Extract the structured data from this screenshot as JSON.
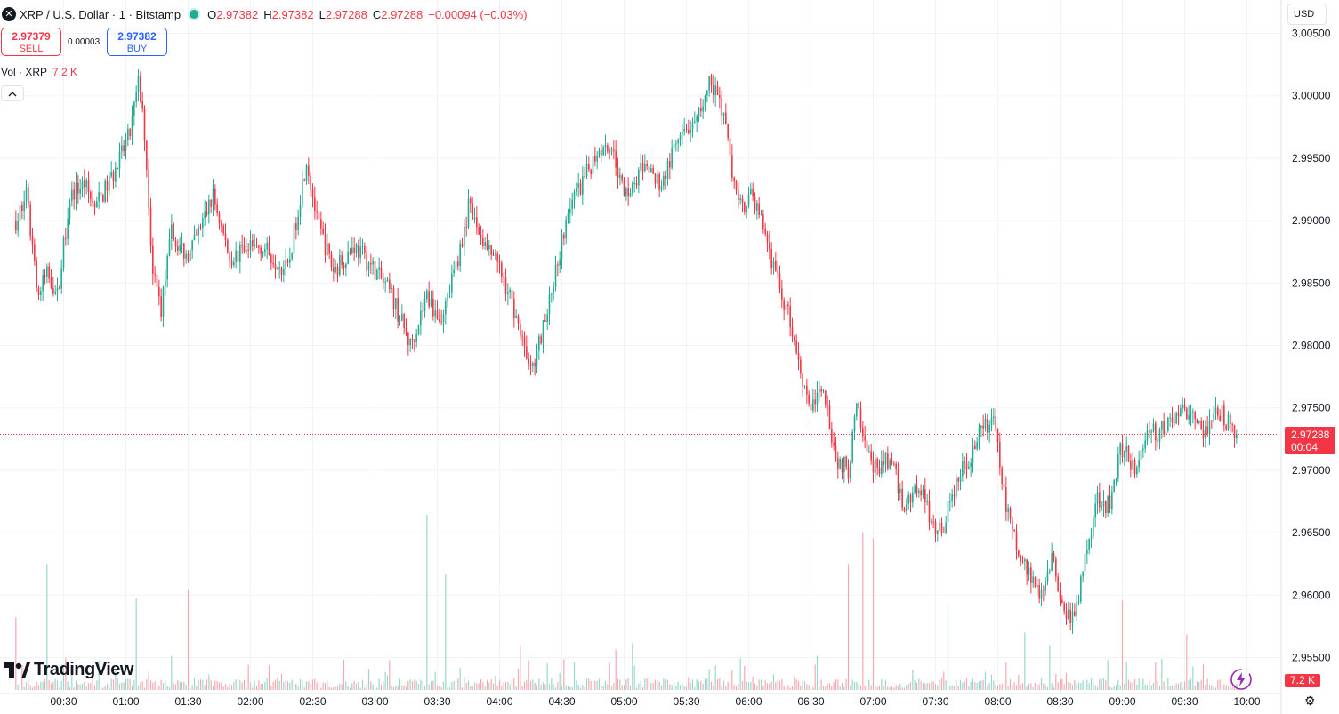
{
  "header": {
    "symbol_icon": "x-logo-icon",
    "title": "XRP / U.S. Dollar · 1 · Bitstamp",
    "ohlc": {
      "o_label": "O",
      "o": "2.97382",
      "h_label": "H",
      "h": "2.97382",
      "l_label": "L",
      "l": "2.97288",
      "c_label": "C",
      "c": "2.97288",
      "change": "−0.00094 (−0.03%)"
    }
  },
  "trade": {
    "sell_price": "2.97379",
    "sell_label": "SELL",
    "spread": "0.00003",
    "buy_price": "2.97382",
    "buy_label": "BUY"
  },
  "volume_legend": {
    "label": "Vol · XRP",
    "value": "7.2 K"
  },
  "controls": {
    "collapse_icon": "chevron-up-icon",
    "currency": "USD"
  },
  "price_tag": {
    "price": "2.97288",
    "countdown": "00:04"
  },
  "volume_tag": "7.2 K",
  "logo_text": "TradingView",
  "colors": {
    "up": "#22ab94",
    "down": "#f23645",
    "grid": "#f0f3fa",
    "text": "#131722"
  },
  "chart_data": {
    "type": "candlestick",
    "interval": "1 minute",
    "ylim": [
      2.9525,
      3.0055
    ],
    "y_ticks": [
      "3.00500",
      "3.00000",
      "2.99500",
      "2.99000",
      "2.98500",
      "2.98000",
      "2.97500",
      "2.97000",
      "2.96500",
      "2.96000",
      "2.95500"
    ],
    "x_ticks": [
      "00:30",
      "01:00",
      "01:30",
      "02:00",
      "02:30",
      "03:00",
      "03:30",
      "04:00",
      "04:30",
      "05:00",
      "05:30",
      "06:00",
      "06:30",
      "07:00",
      "07:30",
      "08:00",
      "08:30",
      "09:00",
      "09:30",
      "10:00"
    ],
    "x_start": "00:07",
    "x_end": "10:00",
    "last_price": 2.97288,
    "close_anchors": [
      {
        "t": "00:07",
        "p": 2.99
      },
      {
        "t": "00:12",
        "p": 2.992
      },
      {
        "t": "00:18",
        "p": 2.984
      },
      {
        "t": "00:22",
        "p": 2.986
      },
      {
        "t": "00:27",
        "p": 2.984
      },
      {
        "t": "00:33",
        "p": 2.992
      },
      {
        "t": "00:40",
        "p": 2.993
      },
      {
        "t": "00:45",
        "p": 2.991
      },
      {
        "t": "00:55",
        "p": 2.994
      },
      {
        "t": "01:02",
        "p": 2.997
      },
      {
        "t": "01:06",
        "p": 3.001
      },
      {
        "t": "01:09",
        "p": 2.997
      },
      {
        "t": "01:13",
        "p": 2.986
      },
      {
        "t": "01:17",
        "p": 2.983
      },
      {
        "t": "01:22",
        "p": 2.989
      },
      {
        "t": "01:30",
        "p": 2.987
      },
      {
        "t": "01:42",
        "p": 2.992
      },
      {
        "t": "01:50",
        "p": 2.987
      },
      {
        "t": "02:05",
        "p": 2.988
      },
      {
        "t": "02:18",
        "p": 2.986
      },
      {
        "t": "02:27",
        "p": 2.995
      },
      {
        "t": "02:32",
        "p": 2.99
      },
      {
        "t": "02:40",
        "p": 2.986
      },
      {
        "t": "02:50",
        "p": 2.988
      },
      {
        "t": "03:00",
        "p": 2.986
      },
      {
        "t": "03:08",
        "p": 2.984
      },
      {
        "t": "03:17",
        "p": 2.98
      },
      {
        "t": "03:25",
        "p": 2.984
      },
      {
        "t": "03:32",
        "p": 2.982
      },
      {
        "t": "03:40",
        "p": 2.987
      },
      {
        "t": "03:45",
        "p": 2.991
      },
      {
        "t": "03:53",
        "p": 2.988
      },
      {
        "t": "04:00",
        "p": 2.986
      },
      {
        "t": "04:05",
        "p": 2.984
      },
      {
        "t": "04:12",
        "p": 2.98
      },
      {
        "t": "04:16",
        "p": 2.978
      },
      {
        "t": "04:22",
        "p": 2.982
      },
      {
        "t": "04:27",
        "p": 2.986
      },
      {
        "t": "04:33",
        "p": 2.991
      },
      {
        "t": "04:40",
        "p": 2.993
      },
      {
        "t": "04:48",
        "p": 2.996
      },
      {
        "t": "04:54",
        "p": 2.996
      },
      {
        "t": "05:00",
        "p": 2.992
      },
      {
        "t": "05:08",
        "p": 2.994
      },
      {
        "t": "05:18",
        "p": 2.993
      },
      {
        "t": "05:25",
        "p": 2.996
      },
      {
        "t": "05:35",
        "p": 2.998
      },
      {
        "t": "05:41",
        "p": 3.001
      },
      {
        "t": "05:46",
        "p": 3.0
      },
      {
        "t": "05:50",
        "p": 2.996
      },
      {
        "t": "05:55",
        "p": 2.991
      },
      {
        "t": "06:02",
        "p": 2.992
      },
      {
        "t": "06:08",
        "p": 2.989
      },
      {
        "t": "06:14",
        "p": 2.985
      },
      {
        "t": "06:20",
        "p": 2.982
      },
      {
        "t": "06:25",
        "p": 2.978
      },
      {
        "t": "06:30",
        "p": 2.975
      },
      {
        "t": "06:36",
        "p": 2.977
      },
      {
        "t": "06:42",
        "p": 2.971
      },
      {
        "t": "06:48",
        "p": 2.97
      },
      {
        "t": "06:52",
        "p": 2.975
      },
      {
        "t": "06:57",
        "p": 2.971
      },
      {
        "t": "07:02",
        "p": 2.97
      },
      {
        "t": "07:08",
        "p": 2.971
      },
      {
        "t": "07:15",
        "p": 2.967
      },
      {
        "t": "07:22",
        "p": 2.969
      },
      {
        "t": "07:28",
        "p": 2.966
      },
      {
        "t": "07:33",
        "p": 2.965
      },
      {
        "t": "07:40",
        "p": 2.969
      },
      {
        "t": "07:46",
        "p": 2.971
      },
      {
        "t": "07:52",
        "p": 2.973
      },
      {
        "t": "07:58",
        "p": 2.974
      },
      {
        "t": "08:03",
        "p": 2.968
      },
      {
        "t": "08:10",
        "p": 2.963
      },
      {
        "t": "08:15",
        "p": 2.962
      },
      {
        "t": "08:20",
        "p": 2.96
      },
      {
        "t": "08:26",
        "p": 2.963
      },
      {
        "t": "08:32",
        "p": 2.959
      },
      {
        "t": "08:37",
        "p": 2.958
      },
      {
        "t": "08:42",
        "p": 2.963
      },
      {
        "t": "08:48",
        "p": 2.968
      },
      {
        "t": "08:54",
        "p": 2.967
      },
      {
        "t": "08:59",
        "p": 2.972
      },
      {
        "t": "09:06",
        "p": 2.97
      },
      {
        "t": "09:12",
        "p": 2.973
      },
      {
        "t": "09:18",
        "p": 2.973
      },
      {
        "t": "09:24",
        "p": 2.974
      },
      {
        "t": "09:30",
        "p": 2.975
      },
      {
        "t": "09:35",
        "p": 2.974
      },
      {
        "t": "09:40",
        "p": 2.973
      },
      {
        "t": "09:45",
        "p": 2.975
      },
      {
        "t": "09:50",
        "p": 2.974
      },
      {
        "t": "09:55",
        "p": 2.97288
      }
    ],
    "volume_spikes": [
      {
        "t": "00:07",
        "v": 3.4
      },
      {
        "t": "00:22",
        "v": 5.9
      },
      {
        "t": "01:05",
        "v": 4.3
      },
      {
        "t": "01:22",
        "v": 1.6
      },
      {
        "t": "01:30",
        "v": 4.7
      },
      {
        "t": "03:25",
        "v": 8.2
      },
      {
        "t": "03:34",
        "v": 5.4
      },
      {
        "t": "04:10",
        "v": 2.1
      },
      {
        "t": "04:56",
        "v": 1.9
      },
      {
        "t": "05:04",
        "v": 2.2
      },
      {
        "t": "06:33",
        "v": 1.6
      },
      {
        "t": "06:48",
        "v": 5.9
      },
      {
        "t": "06:55",
        "v": 7.4
      },
      {
        "t": "07:00",
        "v": 7.1
      },
      {
        "t": "07:36",
        "v": 3.9
      },
      {
        "t": "08:13",
        "v": 2.7
      },
      {
        "t": "08:25",
        "v": 2.1
      },
      {
        "t": "09:00",
        "v": 4.2
      },
      {
        "t": "09:31",
        "v": 2.6
      },
      {
        "t": "09:39",
        "v": 1.2
      }
    ]
  }
}
